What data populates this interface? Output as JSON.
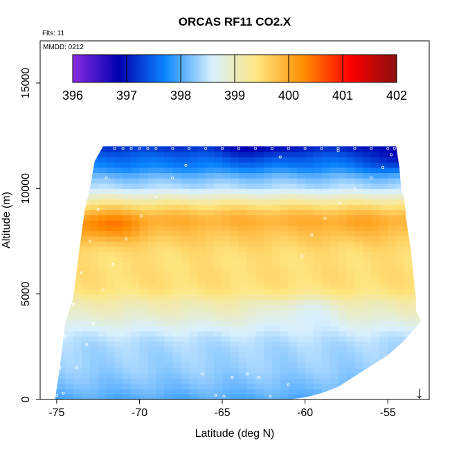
{
  "chart_data": {
    "type": "heatmap",
    "title": "ORCAS RF11 CO2.X",
    "annotations": {
      "flights": "Flts: 11",
      "date": "MMDD: 0212"
    },
    "xlabel": "Latitude (deg N)",
    "ylabel": "Altitude (m)",
    "xlim": [
      -76,
      -52.5
    ],
    "ylim": [
      0,
      17000
    ],
    "x_ticks": [
      -75,
      -70,
      -65,
      -60,
      -55
    ],
    "x_tick_labels": [
      "-75",
      "-70",
      "-65",
      "-60",
      "-55"
    ],
    "y_ticks": [
      0,
      5000,
      10000,
      15000
    ],
    "y_tick_labels": [
      "0",
      "5000",
      "10000",
      "15000"
    ],
    "colorbar": {
      "min": 396,
      "max": 402,
      "ticks": [
        396,
        397,
        398,
        399,
        400,
        401,
        402
      ],
      "tick_labels": [
        "396",
        "397",
        "398",
        "399",
        "400",
        "401",
        "402"
      ],
      "color_stops": [
        "#8a2be2",
        "#0000b0",
        "#0a86ff",
        "#d8f0ff",
        "#ffe680",
        "#ff8c00",
        "#ff0000",
        "#8b1010"
      ]
    },
    "field": {
      "coverage_boundary": {
        "latitude": [
          -75.1,
          -74.8,
          -74.5,
          -74.0,
          -73.6,
          -73.3,
          -73.0,
          -72.7,
          -72.2,
          -54.5,
          -54.3,
          -54.2,
          -54.0,
          -53.9,
          -53.6,
          -53.4,
          -53.3,
          -53.3,
          -53.0,
          -54.0,
          -55.0,
          -56.0,
          -57.0,
          -58.0,
          -59.0,
          -60.0,
          -61.0,
          -75.1
        ],
        "altitude": [
          0,
          1600,
          3600,
          4800,
          7300,
          9000,
          10000,
          11300,
          12000,
          12000,
          11000,
          10000,
          9500,
          8600,
          7000,
          5500,
          4800,
          4200,
          3700,
          2800,
          2100,
          1600,
          1100,
          600,
          300,
          100,
          0,
          0
        ]
      },
      "altitude_profile": {
        "altitude": [
          0,
          1000,
          2000,
          3000,
          4000,
          4600,
          5200,
          6000,
          7000,
          8000,
          8500,
          9000,
          9500,
          10000,
          10500,
          11000,
          11500,
          12000
        ],
        "co2": [
          398.0,
          398.1,
          398.35,
          398.6,
          398.9,
          399.0,
          399.35,
          399.55,
          399.65,
          399.75,
          399.85,
          399.55,
          399.05,
          398.5,
          398.3,
          397.85,
          397.55,
          397.1
        ]
      },
      "anomalies": [
        {
          "latitude": -72.0,
          "altitude": 8200,
          "co2": 400.3
        },
        {
          "latitude": -57.0,
          "altitude": 8200,
          "co2": 399.9
        },
        {
          "latitude": -54.0,
          "altitude": 11500,
          "co2": 396.9
        },
        {
          "latitude": -63.0,
          "altitude": 11900,
          "co2": 396.8
        },
        {
          "latitude": -58.5,
          "altitude": 12000,
          "co2": 397.0
        },
        {
          "latitude": -60.0,
          "altitude": 4200,
          "co2": 398.6
        }
      ]
    },
    "flight_track": {
      "latitude": [
        -75.0,
        -74.8,
        -74.5,
        -74.0,
        -73.5,
        -73.0,
        -72.5,
        -72.0,
        -71.5,
        -71.0,
        -70.5,
        -70.0,
        -69.5,
        -69.0,
        -68.0,
        -67.0,
        -66.0,
        -65.0,
        -64.0,
        -63.0,
        -62.0,
        -61.0,
        -60.0,
        -59.0,
        -58.0,
        -57.0,
        -56.0,
        -55.0,
        -54.6
      ],
      "altitude": [
        200,
        1500,
        3000,
        4500,
        6000,
        7500,
        9000,
        10500,
        11900,
        11900,
        11900,
        11900,
        11900,
        11900,
        11900,
        11900,
        11900,
        11900,
        11900,
        11900,
        11900,
        11900,
        11900,
        11900,
        11900,
        11900,
        11900,
        11900,
        11900
      ]
    },
    "sample_points": [
      {
        "latitude": -74.6,
        "altitude": 300
      },
      {
        "latitude": -73.8,
        "altitude": 1500
      },
      {
        "latitude": -73.2,
        "altitude": 2600
      },
      {
        "latitude": -72.8,
        "altitude": 3600
      },
      {
        "latitude": -72.2,
        "altitude": 5200
      },
      {
        "latitude": -71.6,
        "altitude": 6400
      },
      {
        "latitude": -70.8,
        "altitude": 7600
      },
      {
        "latitude": -69.9,
        "altitude": 8700
      },
      {
        "latitude": -69.0,
        "altitude": 9600
      },
      {
        "latitude": -68.0,
        "altitude": 10500
      },
      {
        "latitude": -67.2,
        "altitude": 11100
      },
      {
        "latitude": -66.2,
        "altitude": 1200
      },
      {
        "latitude": -65.4,
        "altitude": 200
      },
      {
        "latitude": -64.9,
        "altitude": 150
      },
      {
        "latitude": -64.4,
        "altitude": 1050
      },
      {
        "latitude": -63.5,
        "altitude": 1200
      },
      {
        "latitude": -62.8,
        "altitude": 1050
      },
      {
        "latitude": -62.1,
        "altitude": 150
      },
      {
        "latitude": -61.0,
        "altitude": 700
      },
      {
        "latitude": -60.2,
        "altitude": 6800
      },
      {
        "latitude": -59.6,
        "altitude": 7800
      },
      {
        "latitude": -58.8,
        "altitude": 8600
      },
      {
        "latitude": -57.9,
        "altitude": 9300
      },
      {
        "latitude": -57.0,
        "altitude": 10000
      },
      {
        "latitude": -56.0,
        "altitude": 10500
      },
      {
        "latitude": -55.3,
        "altitude": 11000
      },
      {
        "latitude": -54.8,
        "altitude": 11600
      },
      {
        "latitude": -61.5,
        "altitude": 11500
      },
      {
        "latitude": -58.0,
        "altitude": 11800
      }
    ],
    "latitude_marker": {
      "latitude": -53.1,
      "symbol": "↓"
    }
  }
}
